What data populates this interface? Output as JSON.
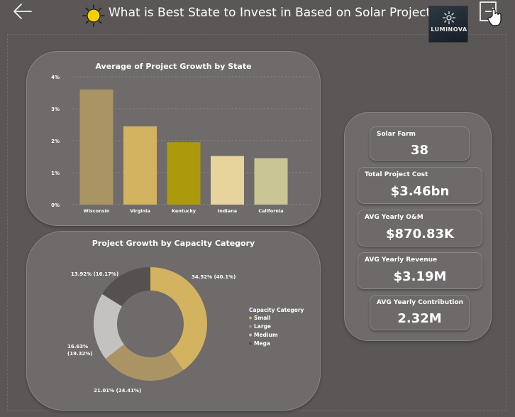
{
  "header": {
    "title": "What is Best State to Invest in Based on Solar Projects?",
    "logo_text": "LUMINOVA"
  },
  "chart_data": [
    {
      "type": "bar",
      "title": "Average of Project Growth by State",
      "categories": [
        "Wisconsin",
        "Virginia",
        "Kentucky",
        "Indiana",
        "California"
      ],
      "values": [
        3.6,
        2.45,
        1.95,
        1.52,
        1.45
      ],
      "colors": [
        "#ab9463",
        "#d3b35f",
        "#ad9a0c",
        "#e6d49c",
        "#c9c595"
      ],
      "ylim": [
        0,
        4
      ],
      "yticks": [
        "0%",
        "1%",
        "2%",
        "3%",
        "4%"
      ],
      "grid": true
    },
    {
      "type": "pie",
      "title": "Project Growth by Capacity Category",
      "donut": true,
      "series": [
        {
          "name": "Small",
          "value": 40.1,
          "label": "34.52% (40.1%)",
          "color": "#d3b35f"
        },
        {
          "name": "Large",
          "value": 24.41,
          "label": "21.01% (24.41%)",
          "color": "#ab9463"
        },
        {
          "name": "Medium",
          "value": 19.32,
          "label": "16.63% (19.32%)",
          "color": "#c4c2c1"
        },
        {
          "name": "Mega",
          "value": 16.17,
          "label": "13.92% (16.17%)",
          "color": "#545150"
        }
      ],
      "legend_title": "Capacity Category",
      "legend_placement": "right"
    }
  ],
  "kpis": [
    {
      "label": "Solar Farm",
      "value": "38"
    },
    {
      "label": "Total Project Cost",
      "value": "$3.46bn"
    },
    {
      "label": "AVG Yearly O&M",
      "value": "$870.83K"
    },
    {
      "label": "AVG Yearly Revenue",
      "value": "$3.19M"
    },
    {
      "label": "AVG Yearly Contribution",
      "value": "2.32M"
    }
  ],
  "icons": [
    "back-arrow-icon",
    "sun-icon",
    "exit-icon",
    "hand-cursor-icon"
  ]
}
